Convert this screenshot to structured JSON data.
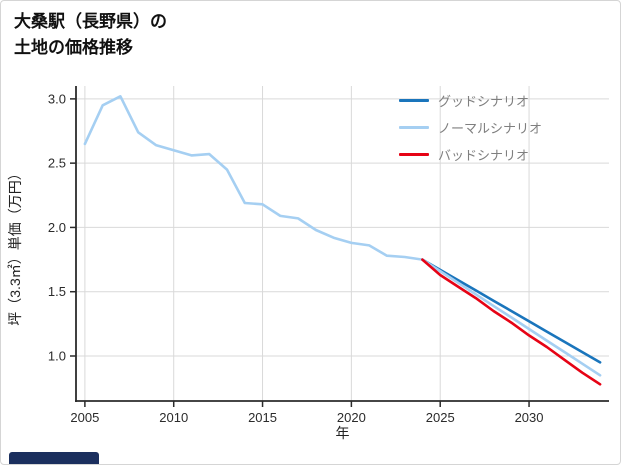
{
  "page": {
    "title_line1": "大桑駅（長野県）の",
    "title_line2": "土地の価格推移",
    "footer_badge_color": "#1b2f5e"
  },
  "axis_color": "#2b2b2b",
  "grid_color": "#d9d9d9",
  "legend_text_color": "#7f7f7f",
  "chart_data": {
    "type": "line",
    "title": "大桑駅（長野県）の土地の価格推移",
    "xlabel": "年",
    "ylabel": "坪（3.3㎡）単価（万円）",
    "xlim": [
      2004.5,
      2034.5
    ],
    "ylim": [
      0.65,
      3.1
    ],
    "grid": true,
    "legend_position": "upper right",
    "xticks": [
      {
        "value": 2005,
        "label": "2005"
      },
      {
        "value": 2010,
        "label": "2010"
      },
      {
        "value": 2015,
        "label": "2015"
      },
      {
        "value": 2020,
        "label": "2020"
      },
      {
        "value": 2025,
        "label": "2025"
      },
      {
        "value": 2030,
        "label": "2030"
      }
    ],
    "yticks": [
      {
        "value": 1.0,
        "label": "1.0"
      },
      {
        "value": 1.5,
        "label": "1.5"
      },
      {
        "value": 2.0,
        "label": "2.0"
      },
      {
        "value": 2.5,
        "label": "2.5"
      },
      {
        "value": 3.0,
        "label": "3.0"
      }
    ],
    "series": [
      {
        "id": "good-scenario",
        "name": "グッドシナリオ",
        "color": "#1a75bc",
        "x": [
          2024,
          2025,
          2026,
          2027,
          2028,
          2029,
          2030,
          2031,
          2032,
          2033,
          2034
        ],
        "values": [
          1.75,
          1.67,
          1.59,
          1.51,
          1.43,
          1.35,
          1.27,
          1.19,
          1.11,
          1.03,
          0.95
        ]
      },
      {
        "id": "normal-scenario",
        "name": "ノーマルシナリオ",
        "color": "#a5cff2",
        "x": [
          2005,
          2006,
          2007,
          2008,
          2009,
          2010,
          2011,
          2012,
          2013,
          2014,
          2015,
          2016,
          2017,
          2018,
          2019,
          2020,
          2021,
          2022,
          2023,
          2024,
          2025,
          2026,
          2027,
          2028,
          2029,
          2030,
          2031,
          2032,
          2033,
          2034
        ],
        "values": [
          2.65,
          2.95,
          3.02,
          2.74,
          2.64,
          2.6,
          2.56,
          2.57,
          2.45,
          2.19,
          2.18,
          2.09,
          2.07,
          1.98,
          1.92,
          1.88,
          1.86,
          1.78,
          1.77,
          1.75,
          1.66,
          1.57,
          1.48,
          1.39,
          1.3,
          1.21,
          1.12,
          1.03,
          0.94,
          0.85
        ]
      },
      {
        "id": "bad-scenario",
        "name": "バッドシナリオ",
        "color": "#e60315",
        "x": [
          2024,
          2025,
          2026,
          2027,
          2028,
          2029,
          2030,
          2031,
          2032,
          2033,
          2034
        ],
        "values": [
          1.75,
          1.63,
          1.54,
          1.45,
          1.35,
          1.26,
          1.16,
          1.07,
          0.97,
          0.87,
          0.78
        ]
      }
    ]
  }
}
